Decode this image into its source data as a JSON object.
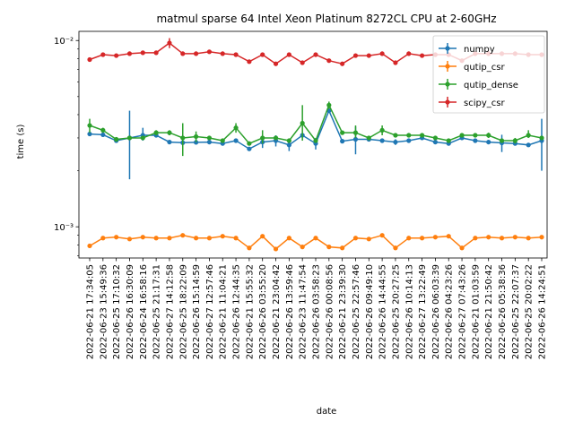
{
  "chart_data": {
    "type": "line",
    "title": "matmul sparse 64 Intel Xeon Platinum 8272CL CPU at 2-60GHz",
    "xlabel": "date",
    "ylabel": "time (s)",
    "yscale": "log",
    "ylim": [
      0.00068,
      0.0112
    ],
    "ytick_labels": [
      "10⁻³",
      "10⁻²"
    ],
    "ytick_values": [
      0.001,
      0.01
    ],
    "legend_location": "top-right",
    "x": [
      "2022-06-21 17:34:05",
      "2022-06-23 15:49:36",
      "2022-06-25 17:10:32",
      "2022-06-26 16:30:09",
      "2022-06-24 16:58:16",
      "2022-06-25 21:17:31",
      "2022-06-27 14:12:58",
      "2022-06-25 18:22:09",
      "2022-06-26 15:14:59",
      "2022-06-27 12:57:46",
      "2022-06-21 11:04:21",
      "2022-06-26 12:44:35",
      "2022-06-21 15:55:32",
      "2022-06-26 03:55:20",
      "2022-06-21 23:04:42",
      "2022-06-26 13:59:46",
      "2022-06-23 11:47:54",
      "2022-06-26 03:58:23",
      "2022-06-26 00:08:56",
      "2022-06-21 23:39:30",
      "2022-06-25 22:57:46",
      "2022-06-26 09:49:10",
      "2022-06-26 14:44:55",
      "2022-06-25 20:27:25",
      "2022-06-26 10:14:13",
      "2022-06-27 13:22:49",
      "2022-06-26 06:03:39",
      "2022-06-26 04:23:26",
      "2022-06-27 07:43:26",
      "2022-06-21 01:03:59",
      "2022-06-21 21:50:42",
      "2022-06-26 05:38:36",
      "2022-06-25 22:07:37",
      "2022-06-25 20:02:22",
      "2022-06-26 14:24:51"
    ],
    "xtick_labels": [
      "2022-06-21 17:34:05",
      "2022-06-23 15:49:36",
      "2022-06-25 17:10:32",
      "2022-06-26 16:30:09",
      "2022-06-24 16:58:16",
      "2022-06-25 21:17:31",
      "2022-06-27 14:12:58",
      "2022-06-25 18:22:09",
      "2022-06-26 15:14:59",
      "2022-06-27 12:57:46",
      "2022-06-21 11:04:21",
      "2022-06-26 12:44:35",
      "2022-06-21 15:55:32",
      "2022-06-26 03:55:20",
      "2022-06-21 23:04:42",
      "2022-06-26 13:59:46",
      "2022-06-23 11:47:54",
      "2022-06-26 03:58:23",
      "2022-06-26 00:08:56",
      "2022-06-21 23:39:30",
      "2022-06-25 22:57:46",
      "2022-06-26 09:49:10",
      "2022-06-26 14:44:55",
      "2022-06-25 20:27:25",
      "2022-06-26 10:14:13",
      "2022-06-27 13:22:49",
      "2022-06-26 06:03:39",
      "2022-06-26 04:23:26",
      "2022-06-27 07:43:26",
      "2022-06-21 01:03:59",
      "2022-06-21 21:50:42",
      "2022-06-26 05:38:36",
      "2022-06-25 22:07:37",
      "2022-06-25 20:02:22",
      "2022-06-26 14:24:51"
    ],
    "series": [
      {
        "name": "numpy",
        "color": "#1f77b4",
        "values": [
          0.00315,
          0.00312,
          0.0029,
          0.003,
          0.0031,
          0.0031,
          0.00285,
          0.00283,
          0.00284,
          0.00285,
          0.0028,
          0.0029,
          0.00262,
          0.00285,
          0.0029,
          0.00275,
          0.0031,
          0.0028,
          0.0042,
          0.00288,
          0.00295,
          0.00295,
          0.0029,
          0.00285,
          0.0029,
          0.003,
          0.00285,
          0.0028,
          0.003,
          0.0029,
          0.00285,
          0.00282,
          0.0028,
          0.00275,
          0.0029
        ],
        "err_low": [
          0,
          0,
          0,
          0.0012,
          0.0002,
          0,
          0,
          0,
          0,
          0,
          0,
          0,
          0,
          0.0002,
          0.0002,
          0.0002,
          0,
          0.0002,
          0,
          0,
          0.0005,
          0,
          0,
          0.0001,
          0,
          0,
          0,
          0,
          0,
          0,
          0,
          0.0003,
          0,
          0,
          0.0009
        ],
        "err_high": [
          0,
          0,
          0,
          0.0012,
          0.0003,
          0,
          0,
          0,
          0,
          0,
          0,
          0,
          0,
          0.0002,
          0.0002,
          0.0002,
          0,
          0.0002,
          0,
          0,
          0.0005,
          0,
          0,
          0.0001,
          0,
          0,
          0,
          0,
          0,
          0,
          0,
          0.0003,
          0,
          0,
          0.0009
        ]
      },
      {
        "name": "qutip_csr",
        "color": "#ff7f0e",
        "values": [
          0.00079,
          0.00087,
          0.00088,
          0.00086,
          0.00088,
          0.00087,
          0.00087,
          0.0009,
          0.00087,
          0.00087,
          0.00089,
          0.00087,
          0.00077,
          0.00089,
          0.00076,
          0.00087,
          0.00078,
          0.00087,
          0.00078,
          0.00077,
          0.00087,
          0.00086,
          0.0009,
          0.00077,
          0.00087,
          0.00087,
          0.00088,
          0.00089,
          0.00077,
          0.00087,
          0.00088,
          0.00087,
          0.00088,
          0.00087,
          0.00088
        ],
        "err_low": [],
        "err_high": []
      },
      {
        "name": "qutip_dense",
        "color": "#2ca02c",
        "values": [
          0.0035,
          0.0033,
          0.00295,
          0.003,
          0.003,
          0.0032,
          0.0032,
          0.003,
          0.00305,
          0.003,
          0.0029,
          0.0034,
          0.0028,
          0.003,
          0.003,
          0.0029,
          0.0036,
          0.0029,
          0.0045,
          0.0032,
          0.0032,
          0.003,
          0.0033,
          0.0031,
          0.0031,
          0.0031,
          0.003,
          0.0029,
          0.0031,
          0.0031,
          0.0031,
          0.0029,
          0.0029,
          0.0031,
          0.003
        ],
        "err_low": [
          0.0003,
          0.0001,
          0,
          0,
          0,
          0.0001,
          0.0001,
          0.0006,
          0.0002,
          0,
          0,
          0.0002,
          0,
          0.0002,
          0,
          0,
          0.0007,
          0,
          0.0002,
          0,
          0.0002,
          0,
          0.0002,
          0,
          0,
          0,
          0,
          0,
          0,
          0,
          0.0001,
          0,
          0.0001,
          0.0001,
          0
        ],
        "err_high": [
          0.0003,
          0.0001,
          0,
          0,
          0,
          0.0001,
          0.0001,
          0.0006,
          0.0002,
          0,
          0,
          0.0002,
          0,
          0.0003,
          0,
          0,
          0.0009,
          0,
          0.0002,
          0,
          0.0003,
          0,
          0.0002,
          0,
          0,
          0,
          0,
          0,
          0,
          0,
          0.0001,
          0,
          0.0001,
          0.0002,
          0
        ]
      },
      {
        "name": "scipy_csr",
        "color": "#d62728",
        "values": [
          0.0079,
          0.0084,
          0.0083,
          0.0085,
          0.0086,
          0.0086,
          0.0097,
          0.0085,
          0.0085,
          0.0087,
          0.0085,
          0.0084,
          0.0077,
          0.0084,
          0.0075,
          0.0084,
          0.0076,
          0.0084,
          0.0078,
          0.0075,
          0.0083,
          0.0083,
          0.0085,
          0.0076,
          0.0085,
          0.0083,
          0.0084,
          0.0084,
          0.0078,
          0.0085,
          0.0085,
          0.0085,
          0.0085,
          0.0084,
          0.0084
        ],
        "err_low": [
          0,
          0,
          0,
          0,
          0,
          0,
          0.0006,
          0,
          0,
          0,
          0,
          0,
          0,
          0,
          0,
          0,
          0,
          0,
          0,
          0,
          0,
          0,
          0,
          0,
          0,
          0,
          0,
          0,
          0,
          0,
          0,
          0,
          0,
          0,
          0
        ],
        "err_high": [
          0,
          0,
          0,
          0,
          0,
          0,
          0.0006,
          0,
          0,
          0,
          0,
          0,
          0,
          0,
          0,
          0,
          0,
          0,
          0,
          0,
          0,
          0,
          0,
          0,
          0,
          0,
          0,
          0,
          0,
          0,
          0,
          0,
          0,
          0,
          0
        ]
      }
    ]
  }
}
